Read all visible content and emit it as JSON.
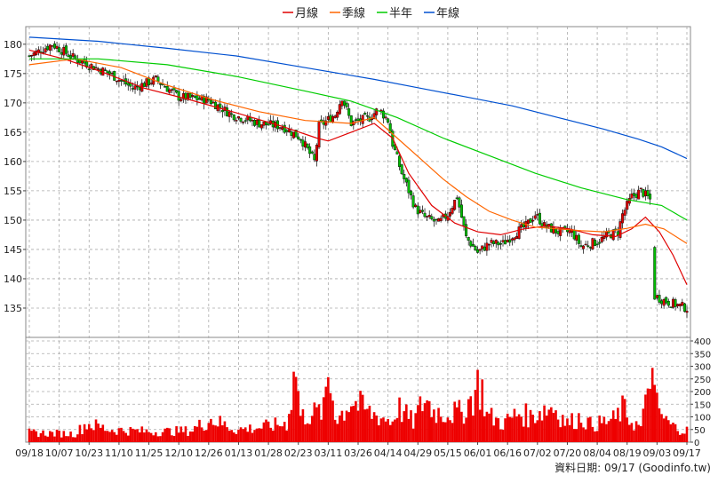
{
  "legend": [
    {
      "label": "月線",
      "color": "#e00000"
    },
    {
      "label": "季線",
      "color": "#ff6600"
    },
    {
      "label": "半年",
      "color": "#00cc00"
    },
    {
      "label": "年線",
      "color": "#0050d0"
    }
  ],
  "footer": "資料日期: 09/17  (Goodinfo.tw)",
  "chart_data": [
    {
      "type": "line",
      "title": "",
      "ylim": [
        130,
        183
      ],
      "y_ticks": [
        135,
        140,
        145,
        150,
        155,
        160,
        165,
        170,
        175,
        180
      ],
      "x_ticks": [
        "09/18",
        "10/07",
        "10/23",
        "11/10",
        "11/25",
        "12/10",
        "12/26",
        "01/13",
        "01/28",
        "02/23",
        "03/11",
        "03/26",
        "04/14",
        "04/29",
        "05/15",
        "06/01",
        "06/16",
        "07/02",
        "07/20",
        "08/04",
        "08/19",
        "09/03",
        "09/17"
      ],
      "x_tick_index": [
        0,
        13,
        26,
        39,
        52,
        65,
        78,
        91,
        104,
        117,
        130,
        143,
        156,
        169,
        182,
        195,
        208,
        221,
        234,
        247,
        260,
        273,
        286
      ],
      "grid": true,
      "price_close_trace": [
        [
          0,
          178
        ],
        [
          10,
          180
        ],
        [
          20,
          177.5
        ],
        [
          35,
          175
        ],
        [
          45,
          172.5
        ],
        [
          55,
          174
        ],
        [
          65,
          171
        ],
        [
          78,
          170.5
        ],
        [
          88,
          168
        ],
        [
          100,
          166.5
        ],
        [
          110,
          166
        ],
        [
          118,
          164
        ],
        [
          124,
          160
        ],
        [
          126,
          166
        ],
        [
          133,
          168
        ],
        [
          136,
          171
        ],
        [
          140,
          166.5
        ],
        [
          148,
          167.5
        ],
        [
          152,
          169
        ],
        [
          156,
          167
        ],
        [
          158,
          163
        ],
        [
          162,
          158
        ],
        [
          168,
          152
        ],
        [
          172,
          150.5
        ],
        [
          178,
          149.5
        ],
        [
          182,
          151
        ],
        [
          186,
          154
        ],
        [
          190,
          147
        ],
        [
          195,
          144.5
        ],
        [
          200,
          146
        ],
        [
          206,
          146
        ],
        [
          212,
          148
        ],
        [
          216,
          149
        ],
        [
          220,
          151
        ],
        [
          224,
          149
        ],
        [
          230,
          148
        ],
        [
          236,
          148
        ],
        [
          240,
          145.5
        ],
        [
          248,
          146.5
        ],
        [
          252,
          147.5
        ],
        [
          256,
          148
        ],
        [
          258,
          151
        ],
        [
          262,
          154
        ],
        [
          266,
          155
        ],
        [
          270,
          153.5
        ],
        [
          272,
          137
        ],
        [
          278,
          136
        ],
        [
          286,
          135
        ]
      ],
      "series": [
        {
          "name": "月線",
          "points": [
            [
              0,
              179
            ],
            [
              15,
              177.5
            ],
            [
              30,
              175.5
            ],
            [
              50,
              172.5
            ],
            [
              70,
              170.5
            ],
            [
              90,
              168.3
            ],
            [
              110,
              166
            ],
            [
              125,
              164
            ],
            [
              130,
              163.5
            ],
            [
              140,
              165
            ],
            [
              150,
              166.5
            ],
            [
              158,
              164
            ],
            [
              165,
              158
            ],
            [
              175,
              152.5
            ],
            [
              185,
              149.5
            ],
            [
              195,
              148
            ],
            [
              205,
              147.5
            ],
            [
              215,
              148.5
            ],
            [
              225,
              149
            ],
            [
              235,
              148.5
            ],
            [
              245,
              147.5
            ],
            [
              255,
              147.2
            ],
            [
              262,
              148.5
            ],
            [
              268,
              150.5
            ],
            [
              274,
              148
            ],
            [
              280,
              144
            ],
            [
              286,
              139
            ]
          ]
        },
        {
          "name": "季線",
          "points": [
            [
              0,
              176.5
            ],
            [
              20,
              177.5
            ],
            [
              40,
              176
            ],
            [
              60,
              173
            ],
            [
              80,
              170.5
            ],
            [
              100,
              168.5
            ],
            [
              120,
              167
            ],
            [
              140,
              166.5
            ],
            [
              150,
              167.5
            ],
            [
              160,
              164
            ],
            [
              170,
              160.5
            ],
            [
              180,
              157
            ],
            [
              190,
              154
            ],
            [
              200,
              151.5
            ],
            [
              210,
              150
            ],
            [
              220,
              148.8
            ],
            [
              230,
              148.5
            ],
            [
              240,
              148.2
            ],
            [
              250,
              148
            ],
            [
              260,
              148.6
            ],
            [
              268,
              149.3
            ],
            [
              276,
              148.5
            ],
            [
              286,
              146
            ]
          ]
        },
        {
          "name": "半年",
          "points": [
            [
              0,
              177.5
            ],
            [
              30,
              177.5
            ],
            [
              60,
              176.5
            ],
            [
              90,
              174.5
            ],
            [
              120,
              172
            ],
            [
              140,
              170.3
            ],
            [
              160,
              167.5
            ],
            [
              180,
              164
            ],
            [
              200,
              161
            ],
            [
              220,
              158
            ],
            [
              240,
              155.5
            ],
            [
              260,
              153.5
            ],
            [
              275,
              152.5
            ],
            [
              286,
              150
            ]
          ]
        },
        {
          "name": "年線",
          "points": [
            [
              0,
              181.2
            ],
            [
              30,
              180.5
            ],
            [
              60,
              179.3
            ],
            [
              90,
              178
            ],
            [
              120,
              176
            ],
            [
              150,
              174
            ],
            [
              170,
              172.5
            ],
            [
              190,
              171
            ],
            [
              210,
              169.5
            ],
            [
              230,
              167.5
            ],
            [
              250,
              165.5
            ],
            [
              265,
              163.8
            ],
            [
              275,
              162.5
            ],
            [
              286,
              160.5
            ]
          ]
        }
      ]
    },
    {
      "type": "bar",
      "title": "",
      "ylim": [
        0,
        400
      ],
      "y_ticks": [
        0,
        50,
        100,
        150,
        200,
        250,
        300,
        350,
        400
      ],
      "volume_profile": [
        [
          0,
          45
        ],
        [
          20,
          40
        ],
        [
          25,
          90
        ],
        [
          35,
          60
        ],
        [
          55,
          50
        ],
        [
          70,
          55
        ],
        [
          79,
          110
        ],
        [
          90,
          60
        ],
        [
          100,
          70
        ],
        [
          112,
          90
        ],
        [
          116,
          360
        ],
        [
          118,
          120
        ],
        [
          121,
          130
        ],
        [
          128,
          150
        ],
        [
          130,
          320
        ],
        [
          134,
          110
        ],
        [
          140,
          200
        ],
        [
          148,
          140
        ],
        [
          158,
          100
        ],
        [
          160,
          170
        ],
        [
          167,
          95
        ],
        [
          172,
          210
        ],
        [
          176,
          150
        ],
        [
          180,
          140
        ],
        [
          188,
          140
        ],
        [
          193,
          220
        ],
        [
          195,
          270
        ],
        [
          197,
          250
        ],
        [
          199,
          130
        ],
        [
          206,
          90
        ],
        [
          213,
          140
        ],
        [
          218,
          120
        ],
        [
          222,
          150
        ],
        [
          228,
          170
        ],
        [
          234,
          90
        ],
        [
          240,
          120
        ],
        [
          244,
          85
        ],
        [
          248,
          90
        ],
        [
          255,
          110
        ],
        [
          258,
          160
        ],
        [
          262,
          100
        ],
        [
          266,
          70
        ],
        [
          268,
          170
        ],
        [
          270,
          390
        ],
        [
          272,
          200
        ],
        [
          276,
          110
        ],
        [
          280,
          75
        ],
        [
          284,
          60
        ],
        [
          286,
          55
        ]
      ]
    }
  ]
}
